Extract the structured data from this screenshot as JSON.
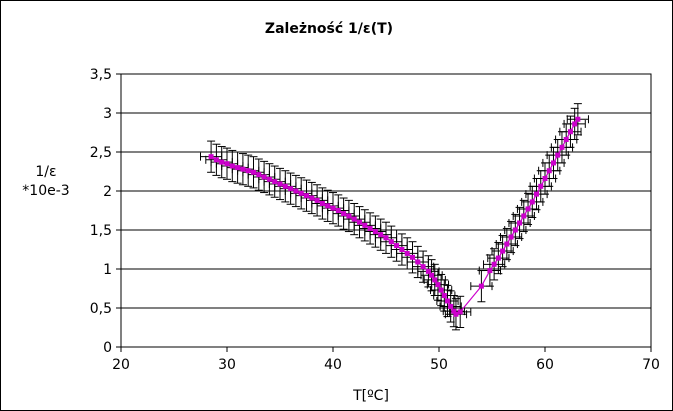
{
  "chart_data": {
    "type": "scatter",
    "title": "Zależność 1/ε(T)",
    "xlabel": "T[ºC]",
    "ylabel_lines": [
      "1/ε",
      "*10e-3"
    ],
    "xlim": [
      20,
      70
    ],
    "ylim": [
      0,
      3.5
    ],
    "xticks": [
      "20",
      "30",
      "40",
      "50",
      "60",
      "70"
    ],
    "yticks": [
      "0",
      "0,5",
      "1",
      "1,5",
      "2",
      "2,5",
      "3",
      "3,5"
    ],
    "grid": "horizontal",
    "legend": "none",
    "series_color": "#cc00cc",
    "error_color": "#000000",
    "y_error": 0.2,
    "x_error": 1.0,
    "series": [
      {
        "x": [
          28.5,
          29.0,
          29.5,
          30.0,
          30.5,
          31.0,
          31.5,
          32.0,
          32.5,
          33.0,
          33.5,
          34.0,
          34.5,
          35.0,
          35.5,
          36.0,
          36.5,
          37.0,
          37.5,
          38.0,
          38.5,
          39.0,
          39.5,
          40.0,
          40.5,
          41.0,
          41.5,
          42.0,
          42.5,
          43.0,
          43.5,
          44.0,
          44.5,
          45.0,
          45.5,
          46.0,
          46.5,
          47.0,
          47.5,
          48.0,
          48.5,
          49.0,
          49.3,
          49.6,
          49.9,
          50.2,
          50.5,
          50.8,
          51.1,
          51.4,
          51.6,
          52.0,
          54.0,
          54.8,
          55.2,
          55.6,
          56.0,
          56.4,
          56.8,
          57.2,
          57.6,
          58.0,
          58.4,
          58.8,
          59.2,
          59.6,
          60.0,
          60.4,
          60.8,
          61.2,
          61.6,
          62.0,
          62.4,
          62.8,
          63.1
        ],
        "y": [
          2.44,
          2.4,
          2.37,
          2.35,
          2.32,
          2.3,
          2.28,
          2.26,
          2.24,
          2.21,
          2.18,
          2.15,
          2.12,
          2.09,
          2.06,
          2.03,
          2.0,
          1.97,
          1.94,
          1.91,
          1.88,
          1.84,
          1.81,
          1.78,
          1.75,
          1.71,
          1.68,
          1.64,
          1.6,
          1.56,
          1.52,
          1.48,
          1.44,
          1.4,
          1.35,
          1.3,
          1.25,
          1.2,
          1.15,
          1.09,
          1.03,
          0.97,
          0.92,
          0.86,
          0.8,
          0.73,
          0.66,
          0.59,
          0.52,
          0.46,
          0.42,
          0.45,
          0.78,
          0.98,
          1.06,
          1.14,
          1.23,
          1.32,
          1.41,
          1.5,
          1.59,
          1.68,
          1.77,
          1.86,
          1.96,
          2.06,
          2.16,
          2.26,
          2.36,
          2.46,
          2.56,
          2.66,
          2.76,
          2.86,
          2.92
        ]
      }
    ]
  }
}
